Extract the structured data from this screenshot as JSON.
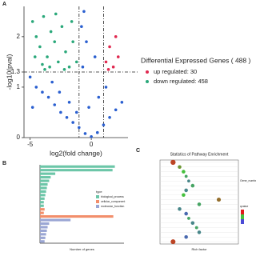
{
  "chart_data": [
    {
      "type": "scatter",
      "panel": "A",
      "xlabel": "log2(fold change)",
      "ylabel": "-log10(pval)",
      "xlim": [
        -5.5,
        3
      ],
      "xticks": [
        -5,
        0
      ],
      "ylim": [
        0,
        2.6
      ],
      "yticks": [
        0,
        1,
        1.3,
        2
      ],
      "hline": 1.3,
      "vlines": [
        -1,
        1
      ],
      "legend_title": "Differential Expressed Genes ( 488 )",
      "series": [
        {
          "color": "#2a5fd0",
          "x": [
            -5,
            -4.5,
            -4,
            -3.5,
            -3,
            -2.5,
            -2,
            -1.5,
            -1,
            -0.5,
            0,
            0.5,
            1,
            1.5,
            2,
            2.5,
            -4.8,
            -3.2,
            -2.6,
            -1.8,
            -1.2,
            -0.7,
            -0.4,
            -0.8,
            0.3,
            0.6,
            -0.2,
            1.2,
            -0.6
          ],
          "y": [
            1.2,
            1.0,
            0.9,
            0.8,
            0.65,
            0.5,
            0.4,
            0.3,
            0.2,
            0.08,
            0.02,
            0.1,
            0.25,
            0.4,
            0.55,
            0.7,
            0.6,
            1.1,
            0.9,
            0.7,
            0.5,
            1.4,
            1.9,
            2.2,
            1.6,
            0.8,
            0.6,
            1.0,
            2.5
          ]
        },
        {
          "name": "up regulated: 30",
          "color": "#e0284f",
          "x": [
            1.2,
            1.5,
            1.8,
            2.0,
            1.4,
            2.2
          ],
          "y": [
            1.5,
            1.8,
            1.4,
            2.0,
            1.35,
            1.6
          ]
        },
        {
          "name": "down regulated: 458",
          "color": "#2aa87a",
          "x": [
            -4.8,
            -4.5,
            -4.2,
            -3.9,
            -3.6,
            -3.3,
            -3.0,
            -2.7,
            -2.4,
            -2.1,
            -1.8,
            -1.5,
            -1.2,
            -4.0,
            -2.9,
            -3.8,
            -2.2,
            -1.6,
            -4.6,
            -3.4
          ],
          "y": [
            2.3,
            2.0,
            1.8,
            2.4,
            1.6,
            2.1,
            1.9,
            1.5,
            2.2,
            1.7,
            1.4,
            1.9,
            1.5,
            1.45,
            2.45,
            1.35,
            1.35,
            2.3,
            1.6,
            1.4
          ]
        }
      ]
    },
    {
      "type": "hbar",
      "panel": "B",
      "xlabel": "Number of genes",
      "legend_title": "type",
      "categories": [
        null,
        null,
        null,
        null,
        null,
        null,
        null,
        null,
        null,
        null,
        null,
        null,
        null,
        null,
        null,
        null,
        null,
        null,
        null,
        null,
        null,
        null
      ],
      "xlim": [
        0,
        110
      ],
      "series": [
        {
          "name": "biological_process",
          "color": "#6cc6a8",
          "values": [
            98,
            95,
            20,
            14,
            12,
            10,
            9,
            8,
            7,
            6,
            5,
            5,
            null,
            null,
            null,
            null,
            null,
            null,
            null,
            null,
            null,
            null
          ]
        },
        {
          "name": "cellular_component",
          "color": "#f28e6b",
          "values": [
            null,
            null,
            null,
            null,
            null,
            null,
            null,
            null,
            null,
            null,
            null,
            null,
            6,
            5,
            96,
            null,
            null,
            null,
            null,
            null,
            null,
            null
          ]
        },
        {
          "name": "molecular_function",
          "color": "#9aa6d4",
          "values": [
            null,
            null,
            null,
            null,
            null,
            null,
            null,
            null,
            null,
            null,
            null,
            null,
            null,
            null,
            null,
            40,
            12,
            10,
            9,
            8,
            7,
            6
          ]
        }
      ]
    },
    {
      "type": "dot",
      "panel": "C",
      "title": "Statistics of Pathway Enrichment",
      "xlabel": "Rich factor",
      "size_title": "Gene_number",
      "color_title": "qvalue",
      "categories": [
        null,
        null,
        null,
        null,
        null,
        null,
        null,
        null,
        null,
        null,
        null,
        null,
        null,
        null,
        null,
        null,
        null,
        null
      ],
      "xlim": [
        0,
        0.6
      ],
      "values": [
        0.1,
        0.15,
        0.18,
        0.2,
        0.22,
        0.25,
        0.2,
        0.18,
        0.45,
        0.3,
        0.15,
        0.2,
        0.22,
        0.25,
        0.28,
        0.3,
        0.2,
        0.1
      ],
      "gene_number": [
        6,
        2,
        2,
        1,
        1,
        2,
        2,
        2,
        3,
        2,
        2,
        2,
        1,
        2,
        1,
        2,
        2,
        5
      ],
      "qvalue": [
        0.1,
        0.3,
        0.4,
        0.5,
        0.6,
        0.5,
        0.6,
        0.4,
        0.2,
        0.5,
        0.6,
        0.7,
        0.5,
        0.6,
        0.5,
        0.6,
        0.7,
        0.1
      ],
      "qlim": [
        0,
        0.8
      ],
      "qcolors": [
        "#e41a1c",
        "#44c13c",
        "#4b4bd6"
      ]
    }
  ]
}
